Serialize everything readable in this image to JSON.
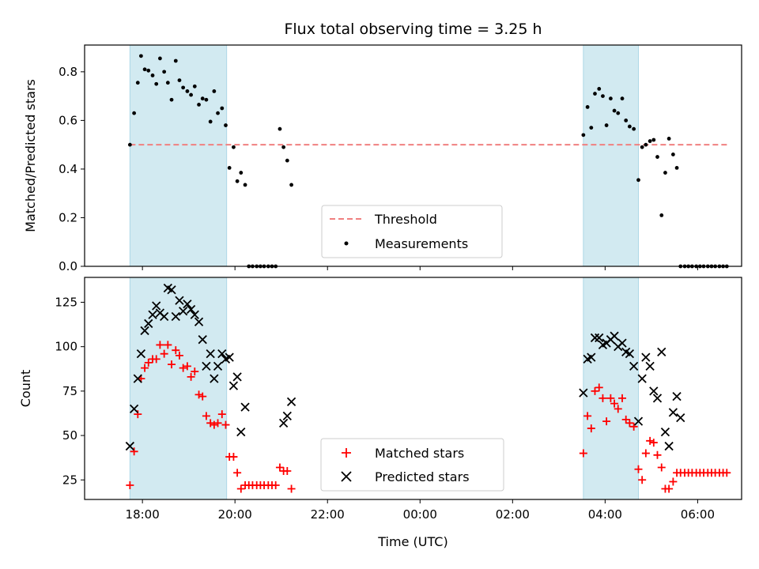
{
  "chart_data": [
    {
      "type": "scatter",
      "title": "Flux total observing time = 3.25 h",
      "ylabel": "Matched/Predicted stars",
      "xlabel": "",
      "ylim": [
        0.0,
        0.91
      ],
      "yticks": [
        0.0,
        0.2,
        0.4,
        0.6,
        0.8
      ],
      "yticklabels": [
        "0.0",
        "0.2",
        "0.4",
        "0.6",
        "0.8"
      ],
      "xlim_hours": [
        16.75,
        30.95
      ],
      "xticks_hours": [
        18,
        20,
        22,
        24,
        26,
        28,
        30
      ],
      "show_xticklabels": false,
      "shaded_intervals_hours": [
        [
          17.73,
          19.82
        ],
        [
          27.53,
          28.72
        ]
      ],
      "shade_color": "#add8e6",
      "threshold": {
        "name": "Threshold",
        "value": 0.5,
        "x_range_hours": [
          17.73,
          30.67
        ],
        "color": "#f08080",
        "style": "dashed"
      },
      "series": [
        {
          "name": "Measurements",
          "color": "#000000",
          "marker": "dot",
          "x_hours": [
            17.73,
            17.82,
            17.9,
            17.97,
            18.05,
            18.13,
            18.22,
            18.3,
            18.38,
            18.47,
            18.55,
            18.63,
            18.72,
            18.8,
            18.88,
            18.97,
            19.05,
            19.13,
            19.22,
            19.3,
            19.38,
            19.47,
            19.55,
            19.63,
            19.72,
            19.8,
            19.88,
            19.97,
            20.05,
            20.13,
            20.22,
            20.3,
            20.38,
            20.47,
            20.55,
            20.63,
            20.72,
            20.8,
            20.88,
            20.97,
            21.05,
            21.13,
            21.22,
            27.53,
            27.62,
            27.7,
            27.78,
            27.87,
            27.95,
            28.03,
            28.12,
            28.2,
            28.28,
            28.37,
            28.45,
            28.53,
            28.62,
            28.72,
            28.8,
            28.88,
            28.97,
            29.05,
            29.13,
            29.22,
            29.3,
            29.38,
            29.47,
            29.55,
            29.63,
            29.72,
            29.8,
            29.88,
            29.97,
            30.05,
            30.13,
            30.22,
            30.3,
            30.38,
            30.47,
            30.55,
            30.63
          ],
          "y": [
            0.5,
            0.63,
            0.755,
            0.865,
            0.81,
            0.805,
            0.785,
            0.75,
            0.855,
            0.8,
            0.755,
            0.685,
            0.845,
            0.765,
            0.735,
            0.72,
            0.705,
            0.74,
            0.665,
            0.69,
            0.685,
            0.595,
            0.72,
            0.63,
            0.65,
            0.58,
            0.405,
            0.49,
            0.35,
            0.385,
            0.335,
            0.0,
            0.0,
            0.0,
            0.0,
            0.0,
            0.0,
            0.0,
            0.0,
            0.565,
            0.49,
            0.435,
            0.335,
            0.54,
            0.655,
            0.57,
            0.71,
            0.73,
            0.7,
            0.58,
            0.69,
            0.64,
            0.63,
            0.69,
            0.6,
            0.575,
            0.565,
            0.355,
            0.49,
            0.5,
            0.515,
            0.52,
            0.45,
            0.21,
            0.385,
            0.525,
            0.46,
            0.405,
            0.0,
            0.0,
            0.0,
            0.0,
            0.0,
            0.0,
            0.0,
            0.0,
            0.0,
            0.0,
            0.0,
            0.0,
            0.0
          ]
        }
      ],
      "legend": {
        "placement": "lower-center",
        "entries": [
          "Threshold",
          "Measurements"
        ]
      }
    },
    {
      "type": "scatter",
      "title": "",
      "ylabel": "Count",
      "xlabel": "Time (UTC)",
      "ylim": [
        14,
        139
      ],
      "yticks": [
        25,
        50,
        75,
        100,
        125
      ],
      "yticklabels": [
        "25",
        "50",
        "75",
        "100",
        "125"
      ],
      "xlim_hours": [
        16.75,
        30.95
      ],
      "xticks_hours": [
        18,
        20,
        22,
        24,
        26,
        28,
        30
      ],
      "xticklabels": [
        "18:00",
        "20:00",
        "22:00",
        "00:00",
        "02:00",
        "04:00",
        "06:00"
      ],
      "shaded_intervals_hours": [
        [
          17.73,
          19.82
        ],
        [
          27.53,
          28.72
        ]
      ],
      "shade_color": "#add8e6",
      "series": [
        {
          "name": "Matched stars",
          "color": "#ff0000",
          "marker": "plus",
          "x_hours": [
            17.73,
            17.82,
            17.9,
            17.97,
            18.05,
            18.13,
            18.22,
            18.3,
            18.38,
            18.47,
            18.55,
            18.63,
            18.72,
            18.8,
            18.88,
            18.97,
            19.05,
            19.13,
            19.22,
            19.3,
            19.38,
            19.47,
            19.55,
            19.63,
            19.72,
            19.8,
            19.88,
            19.97,
            20.05,
            20.13,
            20.22,
            20.3,
            20.38,
            20.47,
            20.55,
            20.63,
            20.72,
            20.8,
            20.88,
            20.97,
            21.05,
            21.13,
            21.22,
            27.53,
            27.62,
            27.7,
            27.78,
            27.87,
            27.95,
            28.03,
            28.12,
            28.2,
            28.28,
            28.37,
            28.45,
            28.53,
            28.62,
            28.72,
            28.8,
            28.88,
            28.97,
            29.05,
            29.13,
            29.22,
            29.3,
            29.38,
            29.47,
            29.55,
            29.63,
            29.72,
            29.8,
            29.88,
            29.97,
            30.05,
            30.13,
            30.22,
            30.3,
            30.38,
            30.47,
            30.55,
            30.63
          ],
          "y": [
            22,
            41,
            62,
            82,
            88,
            91,
            93,
            93,
            101,
            96,
            101,
            90,
            98,
            95,
            88,
            89,
            83,
            86,
            73,
            72,
            61,
            57,
            56,
            57,
            62,
            56,
            38,
            38,
            29,
            20,
            22,
            22,
            22,
            22,
            22,
            22,
            22,
            22,
            22,
            32,
            30,
            30,
            20,
            40,
            61,
            54,
            75,
            77,
            71,
            58,
            71,
            68,
            65,
            71,
            59,
            57,
            55,
            31,
            25,
            40,
            47,
            46,
            39,
            32,
            20,
            20,
            24,
            29,
            29,
            29,
            29,
            29,
            29,
            29,
            29,
            29,
            29,
            29,
            29,
            29,
            29
          ]
        },
        {
          "name": "Predicted stars",
          "color": "#000000",
          "marker": "x",
          "x_hours": [
            17.73,
            17.82,
            17.9,
            17.97,
            18.05,
            18.13,
            18.22,
            18.3,
            18.38,
            18.47,
            18.55,
            18.63,
            18.72,
            18.8,
            18.88,
            18.97,
            19.05,
            19.13,
            19.22,
            19.3,
            19.38,
            19.47,
            19.55,
            19.63,
            19.72,
            19.8,
            19.88,
            19.97,
            20.05,
            20.13,
            20.22,
            21.05,
            21.13,
            21.22,
            27.53,
            27.62,
            27.7,
            27.78,
            27.87,
            27.95,
            28.03,
            28.12,
            28.2,
            28.28,
            28.37,
            28.45,
            28.53,
            28.62,
            28.72,
            28.8,
            28.88,
            28.97,
            29.05,
            29.13,
            29.22,
            29.3,
            29.38,
            29.47,
            29.55,
            29.63
          ],
          "y": [
            44,
            65,
            82,
            96,
            109,
            113,
            118,
            123,
            119,
            117,
            133,
            132,
            117,
            126,
            120,
            124,
            121,
            118,
            114,
            104,
            89,
            96,
            82,
            89,
            96,
            93,
            94,
            78,
            83,
            52,
            66,
            57,
            61,
            69,
            74,
            93,
            94,
            105,
            105,
            101,
            102,
            104,
            106,
            100,
            102,
            97,
            96,
            89,
            58,
            82,
            94,
            89,
            75,
            71,
            97,
            52,
            44,
            63,
            72,
            60
          ]
        }
      ],
      "legend": {
        "placement": "lower-center",
        "entries": [
          "Matched stars",
          "Predicted stars"
        ]
      }
    }
  ]
}
